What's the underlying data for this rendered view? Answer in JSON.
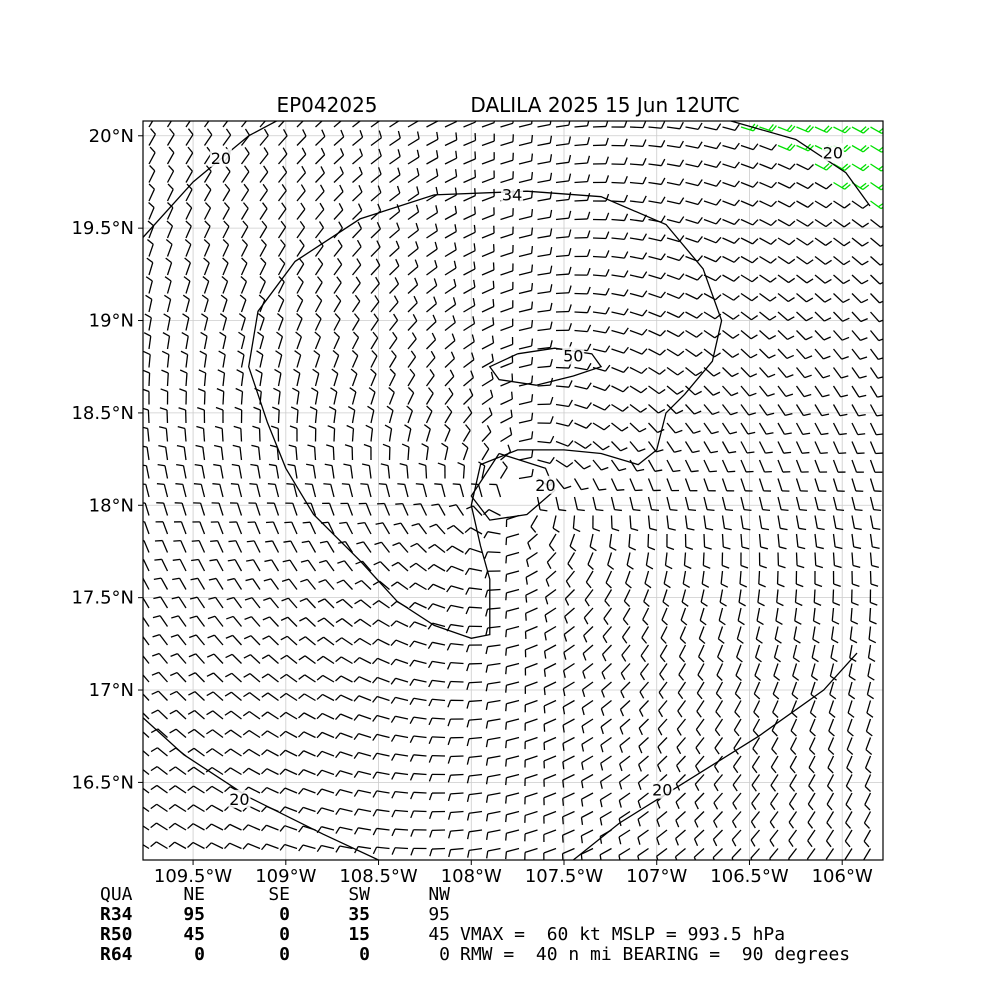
{
  "chart_data": {
    "type": "wind-barb-map",
    "title_left": "EP042025",
    "title_right": "DALILA 2025 15 Jun 12UTC",
    "xlim": [
      -109.77,
      -105.78
    ],
    "ylim": [
      16.08,
      20.08
    ],
    "x_ticks": [
      {
        "value": -109.5,
        "label": "109.5°W"
      },
      {
        "value": -109.0,
        "label": "109°W"
      },
      {
        "value": -108.5,
        "label": "108.5°W"
      },
      {
        "value": -108.0,
        "label": "108°W"
      },
      {
        "value": -107.5,
        "label": "107.5°W"
      },
      {
        "value": -107.0,
        "label": "107°W"
      },
      {
        "value": -106.5,
        "label": "106.5°W"
      },
      {
        "value": -106.0,
        "label": "106°W"
      }
    ],
    "y_ticks": [
      {
        "value": 20.0,
        "label": "20°N"
      },
      {
        "value": 19.5,
        "label": "19.5°N"
      },
      {
        "value": 19.0,
        "label": "19°N"
      },
      {
        "value": 18.5,
        "label": "18.5°N"
      },
      {
        "value": 18.0,
        "label": "18°N"
      },
      {
        "value": 17.5,
        "label": "17.5°N"
      },
      {
        "value": 17.0,
        "label": "17°N"
      },
      {
        "value": 16.5,
        "label": "16.5°N"
      }
    ],
    "grid": true,
    "center": {
      "lon": -107.75,
      "lat": 18.05
    },
    "barb_colors": {
      "below_20": "#000000",
      "kt_20_34": "#00e000",
      "kt_34_50": "#e8b820",
      "kt_50_64": "#ff6a00"
    },
    "contours": [
      {
        "label": "34",
        "label_at": {
          "lon": -107.78,
          "lat": 19.67
        },
        "points": [
          [
            -107.7,
            19.7
          ],
          [
            -107.3,
            19.67
          ],
          [
            -106.95,
            19.52
          ],
          [
            -106.75,
            19.28
          ],
          [
            -106.65,
            19.0
          ],
          [
            -106.7,
            18.78
          ],
          [
            -106.85,
            18.6
          ],
          [
            -106.95,
            18.5
          ],
          [
            -107.0,
            18.3
          ],
          [
            -107.1,
            18.22
          ],
          [
            -107.3,
            18.28
          ],
          [
            -107.5,
            18.3
          ],
          [
            -107.75,
            18.3
          ],
          [
            -107.95,
            18.22
          ],
          [
            -108.0,
            18.0
          ],
          [
            -107.95,
            17.78
          ],
          [
            -107.9,
            17.6
          ],
          [
            -107.9,
            17.3
          ],
          [
            -108.0,
            17.28
          ],
          [
            -108.2,
            17.35
          ],
          [
            -108.4,
            17.48
          ],
          [
            -108.6,
            17.7
          ],
          [
            -108.85,
            17.95
          ],
          [
            -109.0,
            18.2
          ],
          [
            -109.1,
            18.45
          ],
          [
            -109.2,
            18.75
          ],
          [
            -109.15,
            19.05
          ],
          [
            -108.95,
            19.32
          ],
          [
            -108.6,
            19.55
          ],
          [
            -108.2,
            19.68
          ],
          [
            -107.7,
            19.7
          ]
        ]
      },
      {
        "label": "50",
        "label_at": {
          "lon": -107.45,
          "lat": 18.8
        },
        "points": [
          [
            -107.75,
            18.82
          ],
          [
            -107.55,
            18.85
          ],
          [
            -107.35,
            18.82
          ],
          [
            -107.3,
            18.75
          ],
          [
            -107.45,
            18.7
          ],
          [
            -107.65,
            18.65
          ],
          [
            -107.85,
            18.68
          ],
          [
            -107.9,
            18.75
          ],
          [
            -107.75,
            18.82
          ]
        ]
      },
      {
        "label": "20",
        "label_at": {
          "lon": -107.6,
          "lat": 18.1
        },
        "points": [
          [
            -107.85,
            18.28
          ],
          [
            -107.6,
            18.2
          ],
          [
            -107.55,
            18.08
          ],
          [
            -107.7,
            17.95
          ],
          [
            -107.9,
            17.92
          ],
          [
            -108.0,
            18.05
          ],
          [
            -107.85,
            18.28
          ]
        ]
      },
      {
        "label": "20",
        "label_at": {
          "lon": -109.35,
          "lat": 19.87
        },
        "points": [
          [
            -109.77,
            19.45
          ],
          [
            -109.5,
            19.75
          ],
          [
            -109.2,
            20.0
          ],
          [
            -109.05,
            20.08
          ]
        ]
      },
      {
        "label": "20",
        "label_at": {
          "lon": -106.05,
          "lat": 19.9
        },
        "points": [
          [
            -106.6,
            20.08
          ],
          [
            -106.25,
            19.98
          ],
          [
            -105.98,
            19.8
          ],
          [
            -105.85,
            19.62
          ]
        ]
      },
      {
        "label": "20",
        "label_at": {
          "lon": -109.25,
          "lat": 16.4
        },
        "points": [
          [
            -109.77,
            16.85
          ],
          [
            -109.55,
            16.65
          ],
          [
            -109.2,
            16.42
          ],
          [
            -108.8,
            16.22
          ],
          [
            -108.5,
            16.08
          ]
        ]
      },
      {
        "label": "20",
        "label_at": {
          "lon": -106.97,
          "lat": 16.45
        },
        "points": [
          [
            -107.45,
            16.08
          ],
          [
            -107.2,
            16.28
          ],
          [
            -106.85,
            16.5
          ],
          [
            -106.45,
            16.75
          ],
          [
            -106.1,
            17.0
          ],
          [
            -105.92,
            17.2
          ]
        ]
      }
    ],
    "legend": "none"
  },
  "radii_table": {
    "header": [
      "QUA",
      "NE",
      "SE",
      "SW",
      "NW"
    ],
    "rows": [
      {
        "label": "R34",
        "values": [
          "95",
          "0",
          "35",
          "95"
        ]
      },
      {
        "label": "R50",
        "values": [
          "45",
          "0",
          "15",
          "45"
        ]
      },
      {
        "label": "R64",
        "values": [
          "0",
          "0",
          "0",
          "0"
        ]
      }
    ]
  },
  "info": {
    "line1": "VMAX =  60 kt MSLP = 993.5 hPa",
    "line2": "RMW =  40 n mi BEARING =  90 degrees"
  }
}
